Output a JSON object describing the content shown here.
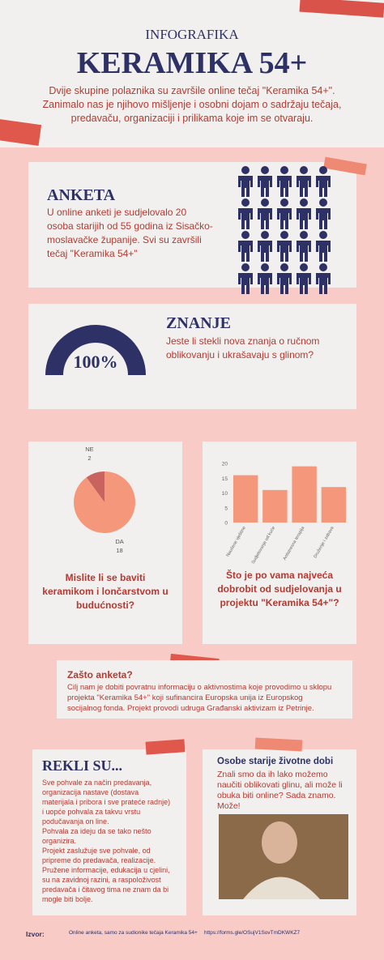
{
  "header": {
    "kicker": "INFOGRAFIKA",
    "title": "KERAMIKA 54+",
    "intro": "Dvije skupine polaznika su završile online tečaj \"Keramika 54+\". Zanimalo nas je njihovo mišljenje i osobni dojam o sadržaju tečaja, predavaču, organizaciji i prilikama koje im se otvaraju."
  },
  "anketa": {
    "title": "ANKETA",
    "text": "U online anketi je sudjelovalo 20 osoba starijih od 55 godina iz Sisačko-moslavačke županije. Svi su završili tečaj \"Keramika 54+\""
  },
  "znanje": {
    "title": "ZNANJE",
    "percent": "100%",
    "question": "Jeste li stekli nova znanja o ručnom oblikovanju i ukrašavaju s glinom?"
  },
  "chart_data": [
    {
      "type": "pie",
      "title": "Mislite li se baviti keramikom i lončarstvom u budućnosti?",
      "categories": [
        "NE",
        "DA"
      ],
      "values": [
        2,
        18
      ],
      "colors": [
        "#c9635f",
        "#f4977a"
      ]
    },
    {
      "type": "bar",
      "title": "Što je po vama najveća dobrobit od sudjelovanja u projektu \"Keramika 54+\"?",
      "categories": [
        "Naučene vještine",
        "Sudjelovanje od kuće",
        "Antistresna terapija",
        "Druženje i zabava"
      ],
      "values": [
        16,
        11,
        19,
        12
      ],
      "color": "#f4977a",
      "ylim": [
        0,
        20
      ],
      "yticks": [
        0,
        5,
        10,
        15,
        20
      ]
    }
  ],
  "zasto": {
    "title": "Zašto anketa?",
    "text": "Cilj nam je dobiti povratnu informaciju o aktivnostima koje provodimo u sklopu projekta \"Keramika 54+\" koji sufinancira Europska unija iz Europskog socijalnog fonda. Projekt provodi udruga Građanski aktivizam iz Petrinje."
  },
  "rekli": {
    "title": "REKLI SU...",
    "paragraphs": [
      "Sve pohvale za način predavanja, organizacija nastave (dostava materijala i pribora i sve prateće radnje) i uopće pohvala za takvu vrstu podučavanja on line.",
      "Pohvala za ideju da se tako nešto organizira.",
      "Projekt zaslužuje sve pohvale, od pripreme do predavača, realizacije.",
      "Pružene informacije, edukacija u cjelini, su na zavidnoj razini, a raspoloživost predavača i čitavog tima ne znam da bi mogle biti bolje."
    ]
  },
  "osobe": {
    "title": "Osobe starije životne dobi",
    "text": "Znali smo da ih lako možemo naučiti oblikovati glinu, ali može li obuka biti online? Sada znamo. Može!"
  },
  "footer": {
    "label": "Izvor:",
    "source": "Online anketa, samo za sudionike tečaja Keramika 54+",
    "url": "https://forms.gle/OSujV1SovTmDKWKZ7"
  }
}
